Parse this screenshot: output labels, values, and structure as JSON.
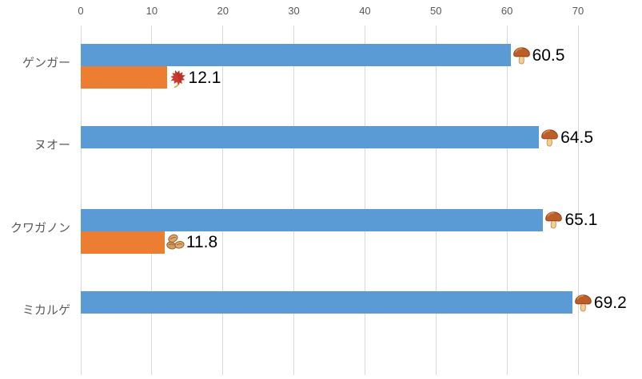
{
  "chart_data": {
    "type": "bar",
    "orientation": "horizontal",
    "title": "",
    "categories": [
      "ゲンガー",
      "ヌオー",
      "クワガノン",
      "ミカルゲ"
    ],
    "series": [
      {
        "name": "series-1",
        "color": "#5B9BD5",
        "values": [
          60.5,
          64.5,
          65.1,
          69.2
        ],
        "data_labels": [
          "60.5",
          "64.5",
          "65.1",
          "69.2"
        ],
        "label_icons": [
          "brown-mushroom-emoji",
          "brown-mushroom-emoji",
          "brown-mushroom-emoji",
          "brown-mushroom-emoji"
        ],
        "label_icon_chars": [
          "🍄‍🟫",
          "🍄‍🟫",
          "🍄‍🟫",
          "🍄‍🟫"
        ]
      },
      {
        "name": "series-2",
        "color": "#ED7D31",
        "values": [
          12.1,
          null,
          11.8,
          null
        ],
        "data_labels": [
          "12.1",
          null,
          "11.8",
          null
        ],
        "label_icons": [
          "maple-leaf-emoji",
          null,
          "beans-emoji",
          null
        ],
        "label_icon_chars": [
          "🍁",
          null,
          "🫘",
          null
        ]
      }
    ],
    "xlim": [
      0,
      70
    ],
    "x_ticks": [
      "0",
      "10",
      "20",
      "30",
      "40",
      "50",
      "60",
      "70"
    ],
    "grid": true,
    "legend": "none",
    "colors": {
      "gridline": "#D9D9D9",
      "axis_text": "#595959",
      "data_label_text": "#000000",
      "series1_fill": "#5B9BD5",
      "series2_fill": "#ED7D31"
    }
  }
}
